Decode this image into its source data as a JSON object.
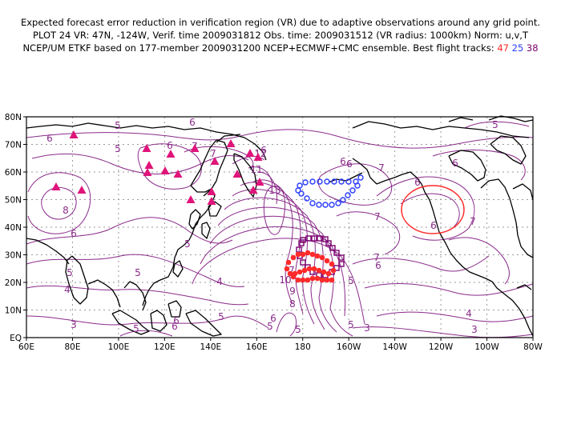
{
  "header": {
    "line1": "Expected forecast error reduction in verification region (VR) due to adaptive observations around any grid point.",
    "line2": "PLOT 24 VR: 47N, -124W, Verif. time 2009031812 Obs. time: 2009031512 (VR radius: 1000km) Norm: u,v,T",
    "line3": "NCEP/UM ETKF based on 177-member 2009031200 NCEP+ECMWF+CMC ensemble. Best flight tracks:",
    "track_red": "47",
    "track_blue": "25",
    "track_magenta": "38"
  },
  "axes": {
    "x_ticks": [
      "60E",
      "80E",
      "100E",
      "120E",
      "140E",
      "160E",
      "180",
      "160W",
      "140W",
      "120W",
      "100W",
      "80W"
    ],
    "y_ticks": [
      "EQ",
      "10N",
      "20N",
      "30N",
      "40N",
      "50N",
      "60N",
      "70N",
      "80N"
    ]
  },
  "contour_labels": [
    "5",
    "6",
    "6",
    "6",
    "7",
    "7",
    "6",
    "6",
    "7",
    "5",
    "5",
    "6",
    "8",
    "11",
    "13",
    "12",
    "5",
    "5",
    "5",
    "4",
    "6",
    "4",
    "3",
    "5",
    "5",
    "6",
    "6",
    "5",
    "8",
    "9",
    "10",
    "7",
    "6",
    "5",
    "5",
    "6",
    "7",
    "7",
    "7",
    "6",
    "6",
    "6",
    "5",
    "4",
    "3",
    "3"
  ],
  "colors": {
    "contour": "#8a2b8a",
    "coast": "#000000",
    "grid": "#9a9a9a",
    "track_red": "#ff2a2a",
    "track_blue": "#2a3cff",
    "track_magenta": "#7a006e",
    "observation_sites": "#e0147a"
  },
  "verification_region": {
    "lat": 47,
    "lon": -124,
    "radius_km": 1000
  }
}
